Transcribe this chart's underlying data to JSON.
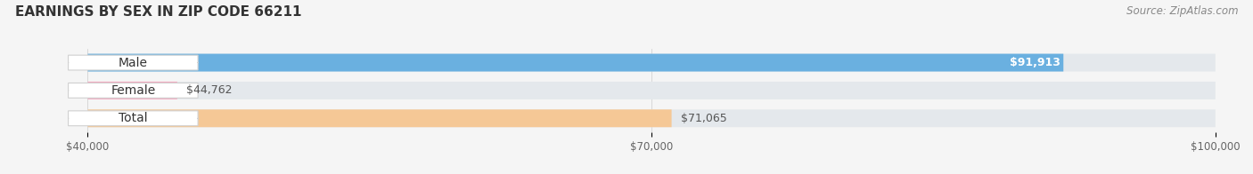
{
  "title": "EARNINGS BY SEX IN ZIP CODE 66211",
  "source": "Source: ZipAtlas.com",
  "categories": [
    "Male",
    "Female",
    "Total"
  ],
  "values": [
    91913,
    44762,
    71065
  ],
  "bar_colors": [
    "#6ab0e0",
    "#f4a8c0",
    "#f5c896"
  ],
  "bar_bg_color": "#e4e8ec",
  "xmin": 40000,
  "xmax": 100000,
  "xticks": [
    40000,
    70000,
    100000
  ],
  "xtick_labels": [
    "$40,000",
    "$70,000",
    "$100,000"
  ],
  "value_labels": [
    "$91,913",
    "$44,762",
    "$71,065"
  ],
  "value_inside": [
    true,
    false,
    false
  ],
  "title_fontsize": 11,
  "source_fontsize": 8.5,
  "label_fontsize": 10,
  "value_fontsize": 9,
  "background_color": "#f5f5f5",
  "bar_height": 0.62,
  "figsize": [
    14.06,
    1.96
  ],
  "dpi": 100
}
